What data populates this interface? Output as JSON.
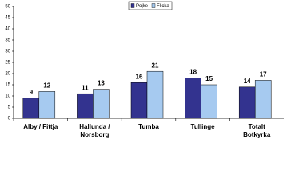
{
  "chart_data": {
    "type": "bar",
    "categories": [
      "Alby / Fittja",
      "Hallunda / Norsborg",
      "Tumba",
      "Tullinge",
      "Totalt Botkyrka"
    ],
    "series": [
      {
        "name": "Pojke",
        "color": "#33338f",
        "values": [
          9,
          11,
          16,
          18,
          14
        ]
      },
      {
        "name": "Flicka",
        "color": "#a6caf0",
        "values": [
          12,
          13,
          21,
          15,
          17
        ]
      }
    ],
    "ylim": [
      0,
      50
    ],
    "yticks": [
      0,
      5,
      10,
      15,
      20,
      25,
      30,
      35,
      40,
      45,
      50
    ],
    "legend": "top"
  }
}
